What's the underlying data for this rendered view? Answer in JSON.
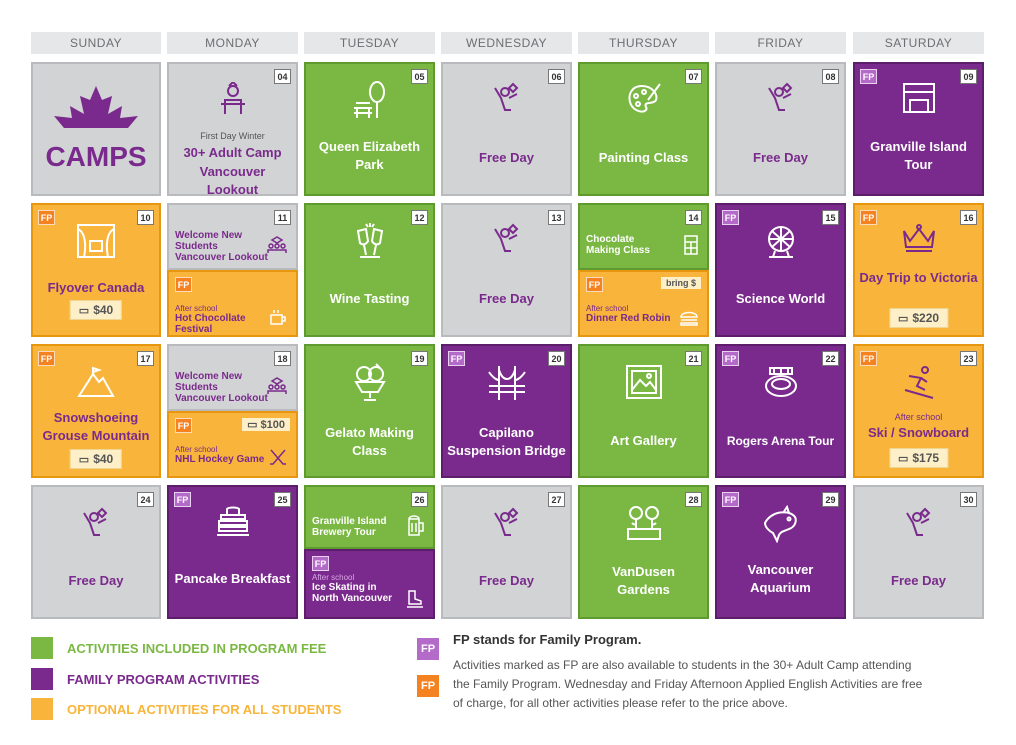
{
  "days": [
    "SUNDAY",
    "MONDAY",
    "TUESDAY",
    "WEDNESDAY",
    "THURSDAY",
    "FRIDAY",
    "SATURDAY"
  ],
  "logo": {
    "text": "CAMPS"
  },
  "cells": {
    "c04": {
      "date": "04",
      "sub": "First Day Winter",
      "title": "30+ Adult Camp",
      "title2": "Vancouver Lookout"
    },
    "c05": {
      "date": "05",
      "title": "Queen Elizabeth Park"
    },
    "c06": {
      "date": "06",
      "title": "Free Day"
    },
    "c07": {
      "date": "07",
      "title": "Painting Class"
    },
    "c08": {
      "date": "08",
      "title": "Free Day"
    },
    "c09": {
      "date": "09",
      "fp": "FP",
      "title": "Granville Island Tour"
    },
    "c10": {
      "date": "10",
      "fp": "FP",
      "title": "Flyover Canada",
      "price": "$40"
    },
    "c11": {
      "date": "11",
      "top_title": "Welcome New Students",
      "top_sub": "Vancouver Lookout",
      "fp": "FP",
      "bot_sub": "After school",
      "bot_title": "Hot Chocollate Festival"
    },
    "c12": {
      "date": "12",
      "title": "Wine Tasting"
    },
    "c13": {
      "date": "13",
      "title": "Free Day"
    },
    "c14": {
      "date": "14",
      "top_title": "Chocolate Making Class",
      "fp": "FP",
      "bring": "bring $",
      "bot_sub": "After school",
      "bot_title": "Dinner Red Robin"
    },
    "c15": {
      "date": "15",
      "fp": "FP",
      "title": "Science World"
    },
    "c16": {
      "date": "16",
      "fp": "FP",
      "title": "Day Trip to Victoria",
      "price": "$220"
    },
    "c17": {
      "date": "17",
      "fp": "FP",
      "title": "Snowshoeing Grouse Mountain",
      "price": "$40"
    },
    "c18": {
      "date": "18",
      "top_title": "Welcome New Students",
      "top_sub": "Vancouver Lookout",
      "fp": "FP",
      "price": "$100",
      "bot_sub": "After school",
      "bot_title": "NHL Hockey Game"
    },
    "c19": {
      "date": "19",
      "title": "Gelato Making Class"
    },
    "c20": {
      "date": "20",
      "fp": "FP",
      "title": "Capilano Suspension Bridge"
    },
    "c21": {
      "date": "21",
      "title": "Art Gallery"
    },
    "c22": {
      "date": "22",
      "fp": "FP",
      "title": "Rogers Arena Tour"
    },
    "c23": {
      "date": "23",
      "fp": "FP",
      "sub": "After school",
      "title": "Ski / Snowboard",
      "price": "$175"
    },
    "c24": {
      "date": "24",
      "title": "Free Day"
    },
    "c25": {
      "date": "25",
      "fp": "FP",
      "title": "Pancake Breakfast"
    },
    "c26": {
      "date": "26",
      "top_title": "Granville Island Brewery Tour",
      "fp": "FP",
      "bot_sub": "After school",
      "bot_title": "Ice Skating in North Vancouver"
    },
    "c27": {
      "date": "27",
      "title": "Free Day"
    },
    "c28": {
      "date": "28",
      "title": "VanDusen Gardens"
    },
    "c29": {
      "date": "29",
      "fp": "FP",
      "title": "Vancouver Aquarium"
    },
    "c30": {
      "date": "30",
      "title": "Free Day"
    }
  },
  "legend": {
    "included": "ACTIVITIES INCLUDED IN PROGRAM FEE",
    "family": "FAMILY PROGRAM ACTIVITIES",
    "optional": "OPTIONAL ACTIVITIES FOR ALL STUDENTS",
    "fp_label": "FP",
    "fp_title": "FP stands for Family Program.",
    "fp_note": "Activities marked as FP are also available to students in the 30+ Adult Camp attending the Family Program. Wednesday and Friday Afternoon Applied English Activities are free of charge, for all other activities please refer to the price above."
  },
  "colors": {
    "green": "#7ab843",
    "purple": "#7a2a8c",
    "orange": "#f9b53b",
    "gray": "#d1d3d4"
  }
}
